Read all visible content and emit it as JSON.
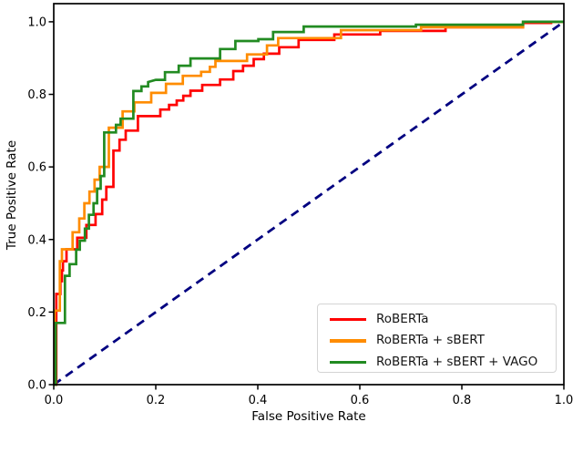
{
  "figure": {
    "background": "#ffffff",
    "text_color": "#000000",
    "spine_color": "#000000"
  },
  "chart_data": {
    "type": "line",
    "subtype": "roc-step-curves",
    "title": "",
    "xlabel": "False Positive Rate",
    "ylabel": "True Positive Rate",
    "xlim": [
      0.0,
      1.0
    ],
    "ylim": [
      0.0,
      1.05
    ],
    "grid": false,
    "legend_position": "lower right",
    "x_ticks": [
      0.0,
      0.2,
      0.4,
      0.6,
      0.8,
      1.0
    ],
    "x_tick_labels": [
      "0.0",
      "0.2",
      "0.4",
      "0.6",
      "0.8",
      "1.0"
    ],
    "y_ticks": [
      0.0,
      0.2,
      0.4,
      0.6,
      0.8,
      1.0
    ],
    "y_tick_labels": [
      "0.0",
      "0.2",
      "0.4",
      "0.6",
      "0.8",
      "1.0"
    ],
    "reference_line": {
      "name": "chance-diagonal",
      "color": "#000080",
      "dashed": true,
      "points": [
        [
          0.0,
          0.0
        ],
        [
          1.0,
          1.0
        ]
      ]
    },
    "series": [
      {
        "name": "RoBERTa",
        "color": "#ff0000",
        "points": [
          [
            0,
            0
          ],
          [
            0.005,
            0
          ],
          [
            0.005,
            0.25
          ],
          [
            0.013,
            0.25
          ],
          [
            0.013,
            0.285
          ],
          [
            0.016,
            0.285
          ],
          [
            0.016,
            0.315
          ],
          [
            0.018,
            0.315
          ],
          [
            0.018,
            0.34
          ],
          [
            0.025,
            0.34
          ],
          [
            0.025,
            0.373
          ],
          [
            0.046,
            0.373
          ],
          [
            0.046,
            0.405
          ],
          [
            0.064,
            0.405
          ],
          [
            0.064,
            0.44
          ],
          [
            0.082,
            0.44
          ],
          [
            0.082,
            0.47
          ],
          [
            0.095,
            0.47
          ],
          [
            0.095,
            0.51
          ],
          [
            0.103,
            0.51
          ],
          [
            0.103,
            0.545
          ],
          [
            0.117,
            0.545
          ],
          [
            0.117,
            0.645
          ],
          [
            0.129,
            0.645
          ],
          [
            0.129,
            0.675
          ],
          [
            0.141,
            0.675
          ],
          [
            0.141,
            0.7
          ],
          [
            0.165,
            0.7
          ],
          [
            0.165,
            0.74
          ],
          [
            0.209,
            0.74
          ],
          [
            0.209,
            0.758
          ],
          [
            0.226,
            0.758
          ],
          [
            0.226,
            0.771
          ],
          [
            0.241,
            0.771
          ],
          [
            0.241,
            0.783
          ],
          [
            0.254,
            0.783
          ],
          [
            0.254,
            0.796
          ],
          [
            0.268,
            0.796
          ],
          [
            0.268,
            0.81
          ],
          [
            0.291,
            0.81
          ],
          [
            0.291,
            0.826
          ],
          [
            0.326,
            0.826
          ],
          [
            0.326,
            0.841
          ],
          [
            0.352,
            0.841
          ],
          [
            0.352,
            0.864
          ],
          [
            0.371,
            0.864
          ],
          [
            0.371,
            0.879
          ],
          [
            0.392,
            0.879
          ],
          [
            0.392,
            0.897
          ],
          [
            0.412,
            0.897
          ],
          [
            0.412,
            0.912
          ],
          [
            0.442,
            0.912
          ],
          [
            0.442,
            0.93
          ],
          [
            0.48,
            0.93
          ],
          [
            0.48,
            0.95
          ],
          [
            0.55,
            0.95
          ],
          [
            0.55,
            0.965
          ],
          [
            0.64,
            0.965
          ],
          [
            0.64,
            0.975
          ],
          [
            0.768,
            0.975
          ],
          [
            0.768,
            0.985
          ],
          [
            0.92,
            0.985
          ],
          [
            0.92,
            0.997
          ],
          [
            0.975,
            0.997
          ],
          [
            0.975,
            1.0
          ],
          [
            1.0,
            1.0
          ]
        ]
      },
      {
        "name": "RoBERTa + sBERT",
        "color": "#ff8c00",
        "points": [
          [
            0,
            0
          ],
          [
            0.002,
            0
          ],
          [
            0.002,
            0.204
          ],
          [
            0.012,
            0.204
          ],
          [
            0.012,
            0.34
          ],
          [
            0.016,
            0.34
          ],
          [
            0.016,
            0.373
          ],
          [
            0.037,
            0.373
          ],
          [
            0.037,
            0.42
          ],
          [
            0.05,
            0.42
          ],
          [
            0.05,
            0.458
          ],
          [
            0.06,
            0.458
          ],
          [
            0.06,
            0.5
          ],
          [
            0.07,
            0.5
          ],
          [
            0.07,
            0.532
          ],
          [
            0.08,
            0.532
          ],
          [
            0.08,
            0.565
          ],
          [
            0.09,
            0.565
          ],
          [
            0.09,
            0.6
          ],
          [
            0.108,
            0.6
          ],
          [
            0.108,
            0.708
          ],
          [
            0.135,
            0.708
          ],
          [
            0.135,
            0.753
          ],
          [
            0.158,
            0.753
          ],
          [
            0.158,
            0.778
          ],
          [
            0.191,
            0.778
          ],
          [
            0.191,
            0.804
          ],
          [
            0.22,
            0.804
          ],
          [
            0.22,
            0.829
          ],
          [
            0.253,
            0.829
          ],
          [
            0.253,
            0.851
          ],
          [
            0.289,
            0.851
          ],
          [
            0.289,
            0.862
          ],
          [
            0.306,
            0.862
          ],
          [
            0.306,
            0.876
          ],
          [
            0.317,
            0.876
          ],
          [
            0.317,
            0.892
          ],
          [
            0.379,
            0.892
          ],
          [
            0.379,
            0.91
          ],
          [
            0.418,
            0.91
          ],
          [
            0.418,
            0.935
          ],
          [
            0.44,
            0.935
          ],
          [
            0.44,
            0.955
          ],
          [
            0.563,
            0.955
          ],
          [
            0.563,
            0.977
          ],
          [
            0.72,
            0.977
          ],
          [
            0.72,
            0.985
          ],
          [
            0.92,
            0.985
          ],
          [
            0.92,
            1.0
          ],
          [
            1.0,
            1.0
          ]
        ]
      },
      {
        "name": "RoBERTa + sBERT + VAGO",
        "color": "#228b22",
        "points": [
          [
            0,
            0
          ],
          [
            0.004,
            0
          ],
          [
            0.004,
            0.17
          ],
          [
            0.022,
            0.17
          ],
          [
            0.022,
            0.3
          ],
          [
            0.031,
            0.3
          ],
          [
            0.031,
            0.332
          ],
          [
            0.044,
            0.332
          ],
          [
            0.044,
            0.372
          ],
          [
            0.051,
            0.372
          ],
          [
            0.051,
            0.397
          ],
          [
            0.061,
            0.397
          ],
          [
            0.061,
            0.43
          ],
          [
            0.069,
            0.43
          ],
          [
            0.069,
            0.468
          ],
          [
            0.078,
            0.468
          ],
          [
            0.078,
            0.5
          ],
          [
            0.085,
            0.5
          ],
          [
            0.085,
            0.54
          ],
          [
            0.092,
            0.54
          ],
          [
            0.092,
            0.575
          ],
          [
            0.099,
            0.575
          ],
          [
            0.099,
            0.695
          ],
          [
            0.122,
            0.695
          ],
          [
            0.122,
            0.716
          ],
          [
            0.131,
            0.716
          ],
          [
            0.131,
            0.733
          ],
          [
            0.156,
            0.733
          ],
          [
            0.156,
            0.809
          ],
          [
            0.172,
            0.809
          ],
          [
            0.172,
            0.822
          ],
          [
            0.185,
            0.822
          ],
          [
            0.185,
            0.834
          ],
          [
            0.2,
            0.84
          ],
          [
            0.218,
            0.84
          ],
          [
            0.218,
            0.861
          ],
          [
            0.245,
            0.861
          ],
          [
            0.245,
            0.879
          ],
          [
            0.268,
            0.879
          ],
          [
            0.268,
            0.899
          ],
          [
            0.326,
            0.899
          ],
          [
            0.326,
            0.925
          ],
          [
            0.356,
            0.925
          ],
          [
            0.356,
            0.947
          ],
          [
            0.401,
            0.947
          ],
          [
            0.401,
            0.952
          ],
          [
            0.43,
            0.952
          ],
          [
            0.43,
            0.972
          ],
          [
            0.49,
            0.972
          ],
          [
            0.49,
            0.987
          ],
          [
            0.71,
            0.987
          ],
          [
            0.71,
            0.992
          ],
          [
            0.92,
            0.992
          ],
          [
            0.92,
            1.0
          ],
          [
            1.0,
            1.0
          ]
        ]
      }
    ]
  },
  "legend": {
    "items": [
      {
        "label": "RoBERTa"
      },
      {
        "label": "RoBERTa + sBERT"
      },
      {
        "label": "RoBERTa + sBERT + VAGO"
      }
    ]
  }
}
